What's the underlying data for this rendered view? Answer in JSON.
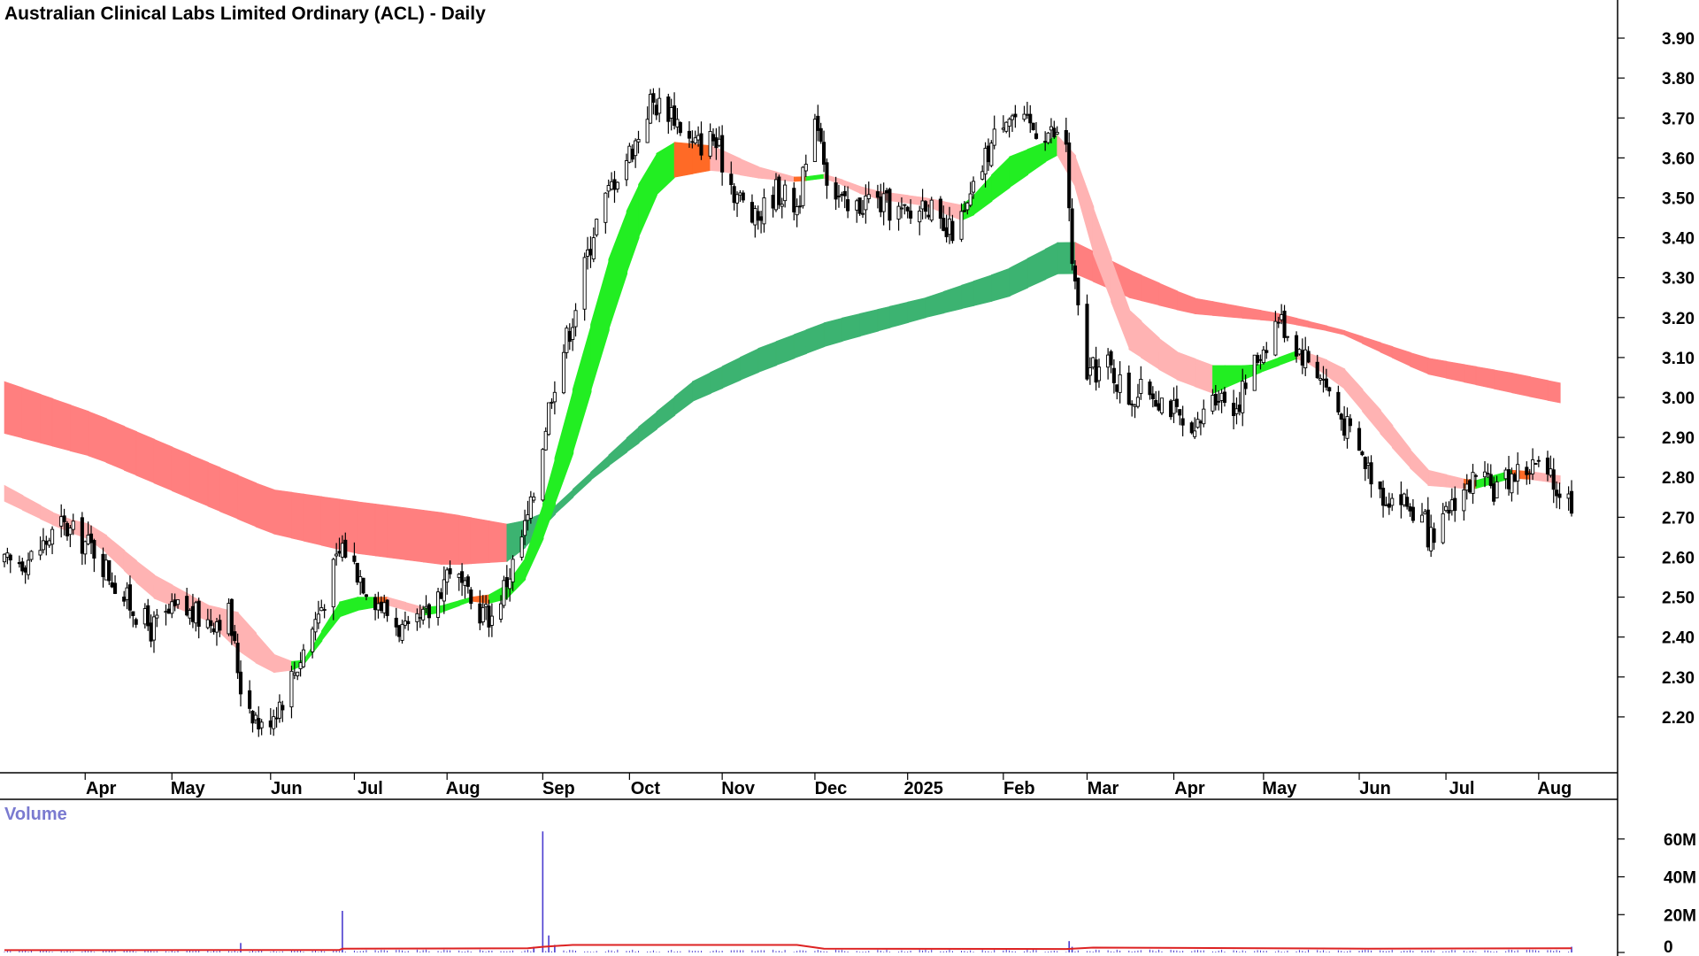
{
  "chart_data": {
    "type": "candlestick",
    "title": "Australian Clinical Labs Limited Ordinary (ACL) - Daily",
    "ylim": [
      2.1,
      3.94
    ],
    "y_ticks": [
      "3.90",
      "3.80",
      "3.70",
      "3.60",
      "3.50",
      "3.40",
      "3.30",
      "3.20",
      "3.10",
      "3.00",
      "2.90",
      "2.80",
      "2.70",
      "2.60",
      "2.50",
      "2.40",
      "2.30",
      "2.20"
    ],
    "x_ticks": [
      {
        "label": "Apr",
        "date": "2024-04-02"
      },
      {
        "label": "May",
        "date": "2024-05-01"
      },
      {
        "label": "Jun",
        "date": "2024-06-03"
      },
      {
        "label": "Jul",
        "date": "2024-07-01"
      },
      {
        "label": "Aug",
        "date": "2024-08-01"
      },
      {
        "label": "Sep",
        "date": "2024-09-02"
      },
      {
        "label": "Oct",
        "date": "2024-10-01"
      },
      {
        "label": "Nov",
        "date": "2024-11-01"
      },
      {
        "label": "Dec",
        "date": "2024-12-02"
      },
      {
        "label": "2025",
        "date": "2025-01-02"
      },
      {
        "label": "Feb",
        "date": "2025-02-03"
      },
      {
        "label": "Mar",
        "date": "2025-03-03"
      },
      {
        "label": "Apr",
        "date": "2025-04-01"
      },
      {
        "label": "May",
        "date": "2025-05-01"
      },
      {
        "label": "Jun",
        "date": "2025-06-02"
      },
      {
        "label": "Jul",
        "date": "2025-07-01"
      },
      {
        "label": "Aug",
        "date": "2025-08-01"
      }
    ],
    "x_start": "2024-03-06",
    "x_end": "2025-08-12",
    "price_path": [
      [
        "2024-03-06",
        2.58
      ],
      [
        "2024-03-15",
        2.6
      ],
      [
        "2024-03-25",
        2.68
      ],
      [
        "2024-04-05",
        2.62
      ],
      [
        "2024-04-15",
        2.5
      ],
      [
        "2024-04-24",
        2.42
      ],
      [
        "2024-05-03",
        2.47
      ],
      [
        "2024-05-13",
        2.44
      ],
      [
        "2024-05-20",
        2.46
      ],
      [
        "2024-05-24",
        2.28
      ],
      [
        "2024-05-31",
        2.17
      ],
      [
        "2024-06-07",
        2.25
      ],
      [
        "2024-06-13",
        2.35
      ],
      [
        "2024-06-20",
        2.48
      ],
      [
        "2024-06-27",
        2.63
      ],
      [
        "2024-07-05",
        2.53
      ],
      [
        "2024-07-12",
        2.46
      ],
      [
        "2024-07-19",
        2.4
      ],
      [
        "2024-07-26",
        2.46
      ],
      [
        "2024-08-02",
        2.58
      ],
      [
        "2024-08-09",
        2.48
      ],
      [
        "2024-08-16",
        2.45
      ],
      [
        "2024-08-23",
        2.58
      ],
      [
        "2024-08-29",
        2.72
      ],
      [
        "2024-09-05",
        3.02
      ],
      [
        "2024-09-12",
        3.2
      ],
      [
        "2024-09-19",
        3.42
      ],
      [
        "2024-09-26",
        3.55
      ],
      [
        "2024-10-03",
        3.64
      ],
      [
        "2024-10-08",
        3.74
      ],
      [
        "2024-10-15",
        3.72
      ],
      [
        "2024-10-22",
        3.63
      ],
      [
        "2024-10-29",
        3.65
      ],
      [
        "2024-11-05",
        3.52
      ],
      [
        "2024-11-12",
        3.44
      ],
      [
        "2024-11-19",
        3.52
      ],
      [
        "2024-11-26",
        3.48
      ],
      [
        "2024-12-03",
        3.7
      ],
      [
        "2024-12-06",
        3.56
      ],
      [
        "2024-12-13",
        3.46
      ],
      [
        "2024-12-20",
        3.5
      ],
      [
        "2025-01-03",
        3.45
      ],
      [
        "2025-01-08",
        3.5
      ],
      [
        "2025-01-14",
        3.4
      ],
      [
        "2025-01-21",
        3.45
      ],
      [
        "2025-01-28",
        3.6
      ],
      [
        "2025-02-04",
        3.72
      ],
      [
        "2025-02-10",
        3.68
      ],
      [
        "2025-02-17",
        3.67
      ],
      [
        "2025-02-24",
        3.64
      ],
      [
        "2025-02-26",
        3.32
      ],
      [
        "2025-03-03",
        3.06
      ],
      [
        "2025-03-10",
        3.08
      ],
      [
        "2025-03-17",
        3.0
      ],
      [
        "2025-03-24",
        3.02
      ],
      [
        "2025-03-31",
        2.98
      ],
      [
        "2025-04-07",
        2.88
      ],
      [
        "2025-04-14",
        3.02
      ],
      [
        "2025-04-22",
        2.98
      ],
      [
        "2025-04-29",
        3.1
      ],
      [
        "2025-05-06",
        3.2
      ],
      [
        "2025-05-13",
        3.12
      ],
      [
        "2025-05-20",
        3.06
      ],
      [
        "2025-05-27",
        2.95
      ],
      [
        "2025-06-03",
        2.85
      ],
      [
        "2025-06-10",
        2.76
      ],
      [
        "2025-06-17",
        2.74
      ],
      [
        "2025-06-24",
        2.68
      ],
      [
        "2025-06-27",
        2.62
      ],
      [
        "2025-07-03",
        2.74
      ],
      [
        "2025-07-10",
        2.79
      ],
      [
        "2025-07-17",
        2.77
      ],
      [
        "2025-07-24",
        2.81
      ],
      [
        "2025-07-31",
        2.83
      ],
      [
        "2025-08-06",
        2.78
      ],
      [
        "2025-08-12",
        2.74
      ]
    ],
    "series": [
      {
        "name": "",
        "role": "short-band-top",
        "points": [
          [
            "2024-03-06",
            2.78
          ],
          [
            "2024-03-25",
            2.7
          ],
          [
            "2024-04-05",
            2.68
          ],
          [
            "2024-04-24",
            2.56
          ],
          [
            "2024-05-13",
            2.48
          ],
          [
            "2024-05-24",
            2.46
          ],
          [
            "2024-06-03",
            2.36
          ],
          [
            "2024-06-13",
            2.33
          ],
          [
            "2024-06-27",
            2.5
          ],
          [
            "2024-07-12",
            2.5
          ],
          [
            "2024-07-26",
            2.47
          ],
          [
            "2024-08-09",
            2.5
          ],
          [
            "2024-08-19",
            2.51
          ],
          [
            "2024-08-29",
            2.62
          ],
          [
            "2024-09-12",
            3.02
          ],
          [
            "2024-09-26",
            3.4
          ],
          [
            "2024-10-08",
            3.6
          ],
          [
            "2024-10-15",
            3.64
          ],
          [
            "2024-10-29",
            3.63
          ],
          [
            "2024-11-12",
            3.58
          ],
          [
            "2024-11-26",
            3.55
          ],
          [
            "2024-12-06",
            3.56
          ],
          [
            "2024-12-20",
            3.52
          ],
          [
            "2025-01-08",
            3.5
          ],
          [
            "2025-01-21",
            3.48
          ],
          [
            "2025-02-04",
            3.6
          ],
          [
            "2025-02-17",
            3.64
          ],
          [
            "2025-02-24",
            3.67
          ],
          [
            "2025-03-03",
            3.52
          ],
          [
            "2025-03-17",
            3.22
          ],
          [
            "2025-03-31",
            3.12
          ],
          [
            "2025-04-14",
            3.08
          ],
          [
            "2025-04-29",
            3.08
          ],
          [
            "2025-05-13",
            3.12
          ],
          [
            "2025-05-27",
            3.08
          ],
          [
            "2025-06-10",
            2.96
          ],
          [
            "2025-06-24",
            2.82
          ],
          [
            "2025-07-10",
            2.79
          ],
          [
            "2025-07-24",
            2.82
          ],
          [
            "2025-08-12",
            2.8
          ]
        ]
      },
      {
        "name": "",
        "role": "short-band-bottom",
        "points": [
          [
            "2024-03-06",
            2.74
          ],
          [
            "2024-03-25",
            2.67
          ],
          [
            "2024-04-05",
            2.64
          ],
          [
            "2024-04-24",
            2.5
          ],
          [
            "2024-05-13",
            2.44
          ],
          [
            "2024-05-24",
            2.36
          ],
          [
            "2024-06-03",
            2.31
          ],
          [
            "2024-06-13",
            2.32
          ],
          [
            "2024-06-27",
            2.46
          ],
          [
            "2024-07-12",
            2.48
          ],
          [
            "2024-07-26",
            2.45
          ],
          [
            "2024-08-09",
            2.49
          ],
          [
            "2024-08-19",
            2.48
          ],
          [
            "2024-08-29",
            2.56
          ],
          [
            "2024-09-12",
            2.86
          ],
          [
            "2024-09-26",
            3.22
          ],
          [
            "2024-10-08",
            3.49
          ],
          [
            "2024-10-15",
            3.55
          ],
          [
            "2024-10-29",
            3.57
          ],
          [
            "2024-11-12",
            3.55
          ],
          [
            "2024-11-26",
            3.54
          ],
          [
            "2024-12-06",
            3.55
          ],
          [
            "2024-12-20",
            3.5
          ],
          [
            "2025-01-08",
            3.48
          ],
          [
            "2025-01-21",
            3.44
          ],
          [
            "2025-02-04",
            3.52
          ],
          [
            "2025-02-17",
            3.59
          ],
          [
            "2025-02-24",
            3.62
          ],
          [
            "2025-03-03",
            3.4
          ],
          [
            "2025-03-17",
            3.12
          ],
          [
            "2025-03-31",
            3.05
          ],
          [
            "2025-04-14",
            3.01
          ],
          [
            "2025-04-29",
            3.06
          ],
          [
            "2025-05-13",
            3.1
          ],
          [
            "2025-05-27",
            3.03
          ],
          [
            "2025-06-10",
            2.9
          ],
          [
            "2025-06-24",
            2.78
          ],
          [
            "2025-07-10",
            2.77
          ],
          [
            "2025-07-24",
            2.8
          ],
          [
            "2025-08-12",
            2.78
          ]
        ]
      },
      {
        "name": "",
        "role": "long-band-top",
        "points": [
          [
            "2024-03-06",
            3.04
          ],
          [
            "2024-04-05",
            2.96
          ],
          [
            "2024-05-06",
            2.86
          ],
          [
            "2024-06-03",
            2.77
          ],
          [
            "2024-07-01",
            2.74
          ],
          [
            "2024-08-01",
            2.71
          ],
          [
            "2024-08-23",
            2.68
          ],
          [
            "2024-09-05",
            2.72
          ],
          [
            "2024-09-19",
            2.82
          ],
          [
            "2024-10-03",
            2.92
          ],
          [
            "2024-10-22",
            3.04
          ],
          [
            "2024-11-12",
            3.12
          ],
          [
            "2024-12-06",
            3.19
          ],
          [
            "2025-01-08",
            3.25
          ],
          [
            "2025-02-04",
            3.32
          ],
          [
            "2025-02-24",
            3.4
          ],
          [
            "2025-03-17",
            3.32
          ],
          [
            "2025-04-07",
            3.25
          ],
          [
            "2025-05-06",
            3.21
          ],
          [
            "2025-05-27",
            3.17
          ],
          [
            "2025-06-24",
            3.1
          ],
          [
            "2025-07-24",
            3.06
          ],
          [
            "2025-08-12",
            3.03
          ]
        ]
      },
      {
        "name": "",
        "role": "long-band-bottom",
        "points": [
          [
            "2024-03-06",
            2.91
          ],
          [
            "2024-04-05",
            2.85
          ],
          [
            "2024-05-06",
            2.75
          ],
          [
            "2024-06-03",
            2.66
          ],
          [
            "2024-07-01",
            2.61
          ],
          [
            "2024-08-01",
            2.58
          ],
          [
            "2024-08-23",
            2.59
          ],
          [
            "2024-09-05",
            2.7
          ],
          [
            "2024-09-19",
            2.8
          ],
          [
            "2024-10-03",
            2.88
          ],
          [
            "2024-10-22",
            2.99
          ],
          [
            "2024-11-12",
            3.06
          ],
          [
            "2024-12-06",
            3.13
          ],
          [
            "2025-01-08",
            3.2
          ],
          [
            "2025-02-04",
            3.25
          ],
          [
            "2025-02-24",
            3.32
          ],
          [
            "2025-03-17",
            3.25
          ],
          [
            "2025-04-07",
            3.21
          ],
          [
            "2025-05-06",
            3.19
          ],
          [
            "2025-05-27",
            3.16
          ],
          [
            "2025-06-24",
            3.06
          ],
          [
            "2025-07-24",
            3.01
          ],
          [
            "2025-08-12",
            2.98
          ]
        ]
      }
    ],
    "band_colors": {
      "up": "#22ee22",
      "up_long": "#3cb371",
      "down": "#ff6a26",
      "down_light": "#ffb3b3",
      "down_long": "#ff7f7f"
    },
    "volume": {
      "title": "Volume",
      "ylim": [
        0,
        66
      ],
      "unit": "M",
      "y_ticks": [
        "60M",
        "40M",
        "20M",
        "0"
      ],
      "spikes": [
        [
          "2024-05-24",
          5
        ],
        [
          "2024-06-27",
          22
        ],
        [
          "2024-08-30",
          3
        ],
        [
          "2024-09-02",
          64
        ],
        [
          "2024-09-04",
          9
        ],
        [
          "2024-09-06",
          4
        ],
        [
          "2025-02-25",
          6
        ],
        [
          "2025-02-26",
          3
        ],
        [
          "2025-08-12",
          3
        ]
      ],
      "avg": [
        [
          "2024-03-06",
          1.2
        ],
        [
          "2024-06-26",
          1.3
        ],
        [
          "2024-06-27",
          2.0
        ],
        [
          "2024-08-28",
          2.2
        ],
        [
          "2024-09-02",
          3.0
        ],
        [
          "2024-09-12",
          4.0
        ],
        [
          "2024-11-26",
          4.0
        ],
        [
          "2024-12-05",
          2.0
        ],
        [
          "2025-02-24",
          1.8
        ],
        [
          "2025-03-05",
          2.6
        ],
        [
          "2025-04-05",
          2.4
        ],
        [
          "2025-06-05",
          2.0
        ],
        [
          "2025-08-12",
          2.2
        ]
      ],
      "bar_color": "#4a3ccf",
      "avg_color": "#dd2222"
    },
    "grid": false,
    "axis_side": "right"
  }
}
